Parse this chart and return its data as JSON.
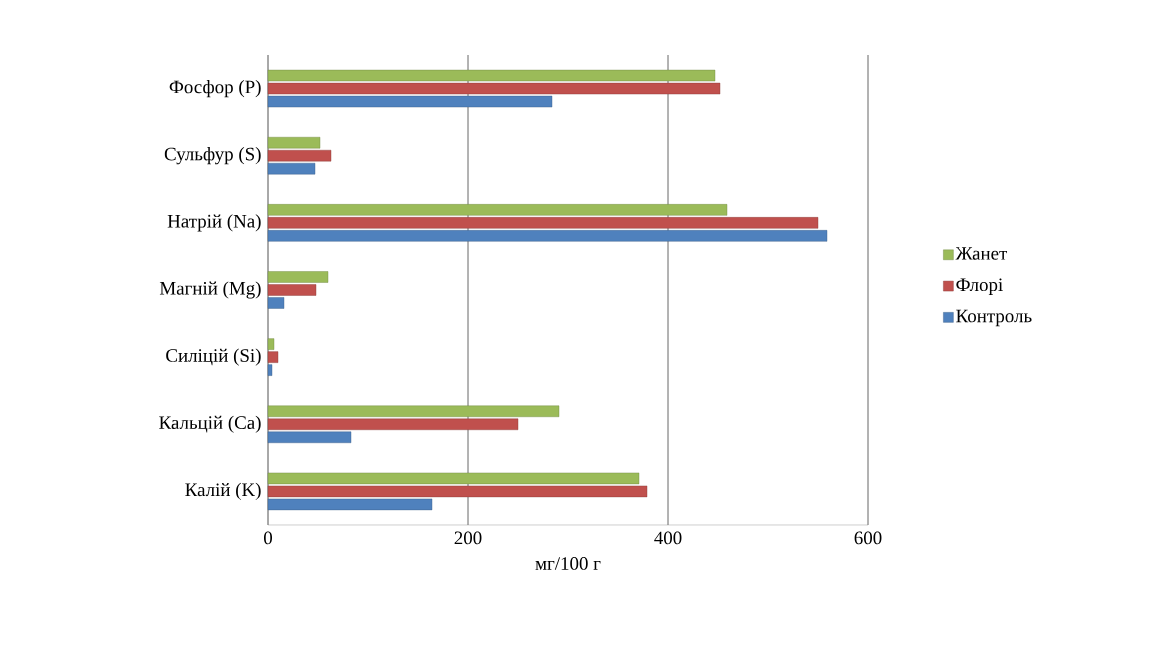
{
  "chart_data": {
    "type": "bar",
    "orientation": "horizontal",
    "xlabel": "мг/100 г",
    "categories": [
      "Фосфор (P)",
      "Сульфур (S)",
      "Натрій (Na)",
      "Магній (Mg)",
      "Силіцій (Si)",
      "Кальцій (Ca)",
      "Калій (K)"
    ],
    "series": [
      {
        "name": "Контроль",
        "color": "#4f81bd",
        "values": [
          284,
          47,
          559,
          16,
          4,
          83,
          164
        ]
      },
      {
        "name": "Флорі",
        "color": "#c0504d",
        "values": [
          452,
          63,
          550,
          48,
          10,
          250,
          379
        ]
      },
      {
        "name": "Жанет",
        "color": "#9bbb59",
        "values": [
          447,
          52,
          459,
          60,
          6,
          291,
          371
        ]
      }
    ],
    "xlim": [
      0,
      600
    ],
    "xticks": [
      0,
      200,
      400,
      600
    ],
    "grid": "x",
    "legend": "right"
  }
}
